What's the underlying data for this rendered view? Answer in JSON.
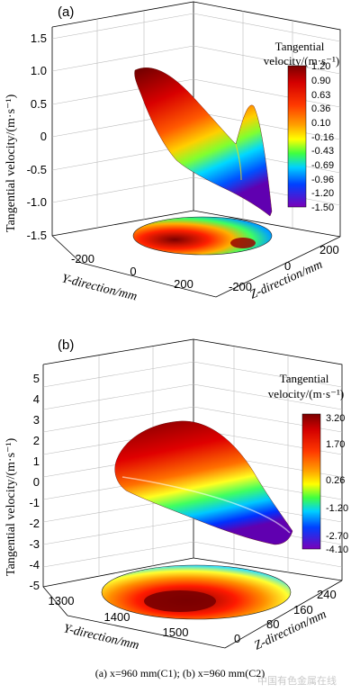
{
  "caption": "(a) x=960 mm(C1); (b) x=960 mm(C2)",
  "watermark": "中国有色金属在线",
  "chart_data": [
    {
      "type": "surface3d",
      "panel": "(a)",
      "zlabel": "Tangential velocity/(m·s⁻¹)",
      "xlabel": "Y-direction/mm",
      "ylabel": "Z-direction/mm",
      "z_ticks": [
        "1.5",
        "1.0",
        "0.5",
        "0",
        "-0.5",
        "-1.0",
        "-1.5"
      ],
      "y_ticks": [
        "-200",
        "0",
        "200"
      ],
      "zdir_ticks": [
        "200",
        "0",
        "-200"
      ],
      "zlim": [
        -1.5,
        1.5
      ],
      "colorbar_title_1": "Tangential",
      "colorbar_title_2": "velocity/(m·s⁻¹)",
      "colorbar_ticks": [
        "1.20",
        "0.90",
        "0.63",
        "0.36",
        "0.10",
        "-0.16",
        "-0.43",
        "-0.69",
        "-0.96",
        "-1.20",
        "-1.50"
      ]
    },
    {
      "type": "surface3d",
      "panel": "(b)",
      "zlabel": "Tangential velocity/(m·s⁻¹)",
      "xlabel": "Y-direction/mm",
      "ylabel": "Z-direction/mm",
      "z_ticks": [
        "5",
        "4",
        "3",
        "2",
        "1",
        "0",
        "-1",
        "-2",
        "-3",
        "-4",
        "-5"
      ],
      "y_ticks": [
        "1300",
        "1400",
        "1500"
      ],
      "zdir_ticks": [
        "240",
        "160",
        "80",
        "0"
      ],
      "zlim": [
        -5,
        5
      ],
      "colorbar_title_1": "Tangential",
      "colorbar_title_2": "velocity/(m·s⁻¹)",
      "colorbar_ticks": [
        "3.20",
        "1.70",
        "0.26",
        "-1.20",
        "-2.70",
        "-4.10"
      ]
    }
  ]
}
